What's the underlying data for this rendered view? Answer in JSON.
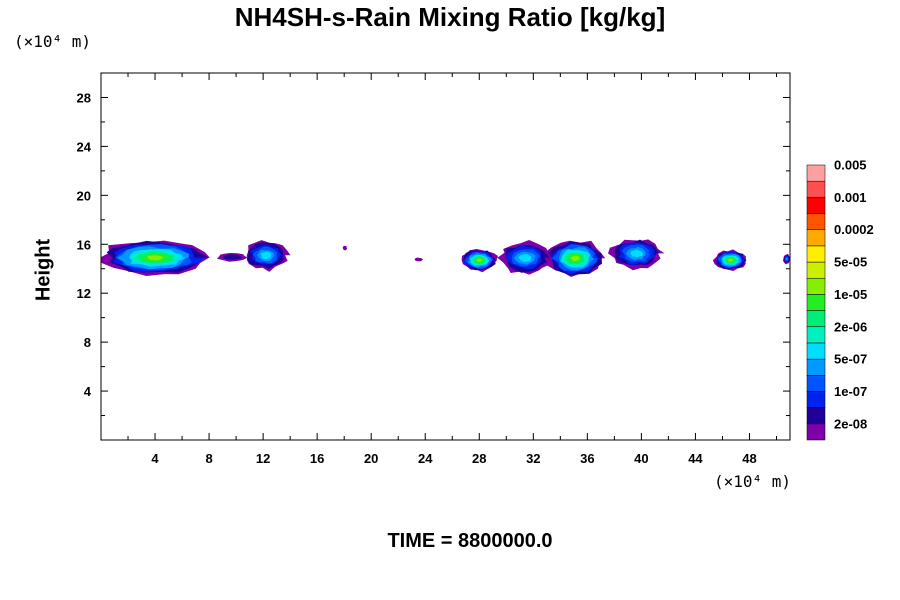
{
  "chart_data": {
    "type": "heatmap",
    "title": "NH4SH-s-Rain Mixing Ratio [kg/kg]",
    "ylabel": "Height",
    "x_unit": "(×10⁴ m)",
    "y_unit": "(×10⁴ m)",
    "time_label": "TIME = 8800000.0",
    "xlim": [
      0,
      51
    ],
    "ylim": [
      0,
      30
    ],
    "x_ticks": [
      4,
      8,
      12,
      16,
      20,
      24,
      28,
      32,
      36,
      40,
      44,
      48
    ],
    "x_tick_labels": [
      "4",
      "8",
      "12",
      "16",
      "20",
      "24",
      "28",
      "32",
      "36",
      "40",
      "44",
      "48"
    ],
    "y_ticks": [
      4,
      8,
      12,
      16,
      20,
      24,
      28
    ],
    "y_tick_labels": [
      "4",
      "8",
      "12",
      "16",
      "20",
      "24",
      "28"
    ],
    "colorbar": {
      "colors": [
        "#7f00a8",
        "#1f0099",
        "#0022ee",
        "#0055ff",
        "#0099ff",
        "#00ddff",
        "#00f0c0",
        "#00ee77",
        "#22ee22",
        "#88ee00",
        "#ccee00",
        "#ffee00",
        "#ffaa00",
        "#ff5500",
        "#ff0000",
        "#ff5050",
        "#ffa0a0"
      ],
      "labels": [
        "2e-08",
        "1e-07",
        "5e-07",
        "2e-06",
        "1e-05",
        "5e-05",
        "0.0002",
        "0.001",
        "0.005"
      ]
    },
    "blobs": [
      {
        "x0": 0,
        "x1": 8,
        "y0": 13.5,
        "y1": 16.3,
        "peak": 9
      },
      {
        "x0": 8.6,
        "x1": 10.8,
        "y0": 14.6,
        "y1": 15.3,
        "peak": 1
      },
      {
        "x0": 10.6,
        "x1": 13.8,
        "y0": 13.9,
        "y1": 16.3,
        "peak": 5
      },
      {
        "x0": 17.9,
        "x1": 18.2,
        "y0": 15.5,
        "y1": 15.9,
        "peak": 0
      },
      {
        "x0": 23.2,
        "x1": 23.8,
        "y0": 14.6,
        "y1": 14.9,
        "peak": 0
      },
      {
        "x0": 26.7,
        "x1": 29.3,
        "y0": 13.8,
        "y1": 15.6,
        "peak": 9
      },
      {
        "x0": 29.5,
        "x1": 33.3,
        "y0": 13.6,
        "y1": 16.2,
        "peak": 5
      },
      {
        "x0": 33.0,
        "x1": 37.2,
        "y0": 13.4,
        "y1": 16.3,
        "peak": 9
      },
      {
        "x0": 37.8,
        "x1": 41.5,
        "y0": 14.0,
        "y1": 16.5,
        "peak": 5
      },
      {
        "x0": 45.4,
        "x1": 47.8,
        "y0": 13.9,
        "y1": 15.5,
        "peak": 9
      },
      {
        "x0": 50.5,
        "x1": 51,
        "y0": 14.4,
        "y1": 15.2,
        "peak": 4
      }
    ]
  }
}
